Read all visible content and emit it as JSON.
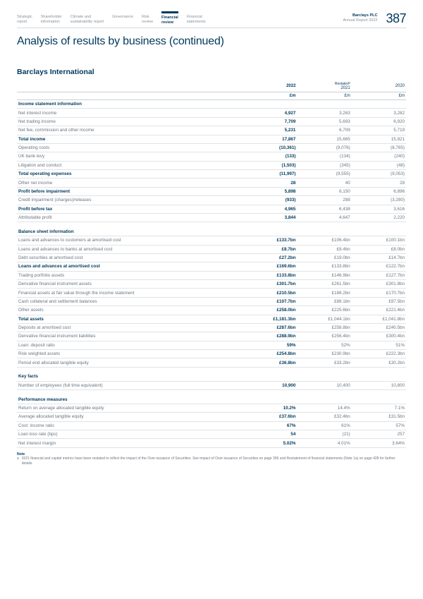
{
  "nav": {
    "items": [
      "Strategic\nreport",
      "Shareholder\ninformation",
      "Climate and\nsustainability report",
      "Governance",
      "Risk\nreview",
      "Financial\nreview",
      "Financial\nstatements"
    ],
    "active_index": 5,
    "company": "Barclays PLC",
    "subtitle": "Annual Report 2022",
    "page_number": "387"
  },
  "title": "Analysis of results by business (continued)",
  "section_title": "Barclays International",
  "columns": {
    "y2022": "2022",
    "y2021": "2021",
    "restated": "Restatedª",
    "y2020": "2020",
    "unit": "£m"
  },
  "groups": [
    {
      "header": "Income statement information",
      "rows": [
        {
          "label": "Net interest income",
          "v": [
            "4,927",
            "3,263",
            "3,282"
          ]
        },
        {
          "label": "Net trading income",
          "v": [
            "7,709",
            "5,693",
            "6,920"
          ]
        },
        {
          "label": "Net fee, commission and other income",
          "v": [
            "5,231",
            "6,709",
            "5,719"
          ]
        },
        {
          "label": "Total income",
          "v": [
            "17,867",
            "15,665",
            "15,921"
          ],
          "bold": true
        },
        {
          "label": "Operating costs",
          "v": [
            "(10,361)",
            "(9,076)",
            "(8,765)"
          ]
        },
        {
          "label": "UK bank levy",
          "v": [
            "(133)",
            "(134)",
            "(240)"
          ]
        },
        {
          "label": "Litigation and conduct",
          "v": [
            "(1,503)",
            "(345)",
            "(48)"
          ]
        },
        {
          "label": "Total operating expenses",
          "v": [
            "(11,997)",
            "(9,555)",
            "(9,053)"
          ],
          "bold": true
        },
        {
          "label": "Other net income",
          "v": [
            "28",
            "40",
            "28"
          ]
        },
        {
          "label": "Profit before impairment",
          "v": [
            "5,898",
            "6,150",
            "6,896"
          ],
          "bold": true
        },
        {
          "label": "Credit impairment (charges)/releases",
          "v": [
            "(933)",
            "288",
            "(3,280)"
          ]
        },
        {
          "label": "Profit before tax",
          "v": [
            "4,965",
            "6,438",
            "3,616"
          ],
          "bold": true
        },
        {
          "label": "Attributable profit",
          "v": [
            "3,844",
            "4,647",
            "2,220"
          ]
        }
      ]
    },
    {
      "header": "Balance sheet information",
      "rows": [
        {
          "label": "Loans and advances to customers at amortised cost",
          "v": [
            "£133.7bn",
            "£106.4bn",
            "£100.1bn"
          ]
        },
        {
          "label": "Loans and advances to banks at amortised cost",
          "v": [
            "£8.7bn",
            "£8.4bn",
            "£8.0bn"
          ]
        },
        {
          "label": "Debt securities at amortised cost",
          "v": [
            "£27.2bn",
            "£19.0bn",
            "£14.7bn"
          ]
        },
        {
          "label": "Loans and advances at amortised cost",
          "v": [
            "£169.6bn",
            "£133.8bn",
            "£122.7bn"
          ],
          "bold": true
        },
        {
          "label": "Trading portfolio assets",
          "v": [
            "£133.8bn",
            "£146.9bn",
            "£127.7bn"
          ]
        },
        {
          "label": "Derivative financial instrument assets",
          "v": [
            "£301.7bn",
            "£261.5bn",
            "£301.8bn"
          ]
        },
        {
          "label": "Financial assets at fair value through the income statement",
          "v": [
            "£210.5bn",
            "£188.2bn",
            "£170.7bn"
          ]
        },
        {
          "label": "Cash collateral and settlement balances",
          "v": [
            "£107.7bn",
            "£88.1bn",
            "£97.5bn"
          ]
        },
        {
          "label": "Other assets",
          "v": [
            "£258.0bn",
            "£225.6bn",
            "£221.4bn"
          ]
        },
        {
          "label": "Total assets",
          "v": [
            "£1,181.3bn",
            "£1,044.1bn",
            "£1,041.8bn"
          ],
          "bold": true
        },
        {
          "label": "Deposits at amortised cost",
          "v": [
            "£287.6bn",
            "£258.8bn",
            "£240.5bn"
          ]
        },
        {
          "label": "Derivative financial instrument liabilities",
          "v": [
            "£288.9bn",
            "£256.4bn",
            "£300.4bn"
          ]
        },
        {
          "label": "Loan: deposit ratio",
          "v": [
            "59%",
            "52%",
            "51%"
          ]
        },
        {
          "label": "Risk weighted assets",
          "v": [
            "£254.8bn",
            "£230.9bn",
            "£222.3bn"
          ]
        },
        {
          "label": "Period end allocated tangible equity",
          "v": [
            "£36.8bn",
            "£33.2bn",
            "£30.2bn"
          ]
        }
      ]
    },
    {
      "header": "Key facts",
      "rows": [
        {
          "label": "Number of employees (full time equivalent)",
          "v": [
            "10,900",
            "10,400",
            "10,800"
          ]
        }
      ]
    },
    {
      "header": "Performance measures",
      "rows": [
        {
          "label": "Return on average allocated tangible equity",
          "v": [
            "10.2%",
            "14.4%",
            "7.1%"
          ]
        },
        {
          "label": "Average allocated tangible equity",
          "v": [
            "£37.6bn",
            "£32.4bn",
            "£31.5bn"
          ]
        },
        {
          "label": "Cost: income ratio",
          "v": [
            "67%",
            "61%",
            "57%"
          ]
        },
        {
          "label": "Loan loss rate (bps)",
          "v": [
            "54",
            "(21)",
            "257"
          ]
        },
        {
          "label": "Net interest margin",
          "v": [
            "5.02%",
            "4.01%",
            "3.64%"
          ]
        }
      ]
    }
  ],
  "note": {
    "title": "Note",
    "marker": "a",
    "text": "2021 financial and capital metrics have been restated to reflect the impact of the Over-issuance of Securities. See impact of Over-issuance of Securities on page 356 and Restatement of financial statements (Note 1a) on page 428 for further details."
  }
}
